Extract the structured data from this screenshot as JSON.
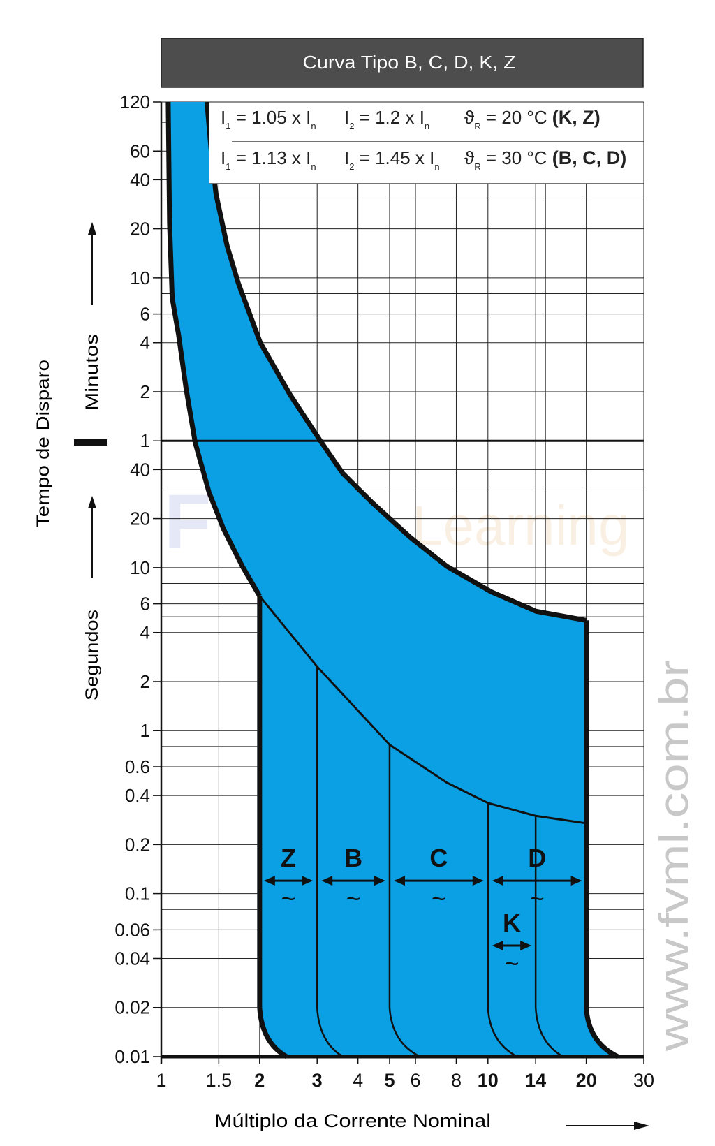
{
  "colors": {
    "fill": "#0b9fe3",
    "header_bg": "#4d4d4d",
    "line": "#111111",
    "watermark": "#c8c8c8"
  },
  "header": {
    "title": "Curva Tipo B, C, D, K, Z"
  },
  "conditions": [
    {
      "i1": "1.05",
      "i2": "1.2",
      "temp": "20 °C",
      "types": "(K, Z)"
    },
    {
      "i1": "1.13",
      "i2": "1.45",
      "temp": "30 °C",
      "types": "(B, C, D)"
    }
  ],
  "condition_labels": {
    "i": "I",
    "sub1": "1",
    "sub2": "2",
    "subn": "n",
    "times": "x",
    "eq": "=",
    "theta": "ϑ",
    "subR": "R"
  },
  "watermarks": {
    "site": "www.fvml.com.br",
    "logo": "FVML Learning"
  },
  "chart_data": {
    "type": "area",
    "title": "Curva Tipo B, C, D, K, Z",
    "xlabel": "Múltiplo da Corrente Nominal",
    "ylabel": "Tempo de Disparo",
    "ylabel_minutes": "Minutos",
    "ylabel_seconds": "Segundos",
    "xscale": "log",
    "yscale": "log",
    "xlim": [
      1,
      30
    ],
    "ylim_seconds": [
      0.01,
      7200
    ],
    "x_ticks": [
      {
        "v": 1,
        "label": "1",
        "bold": false
      },
      {
        "v": 1.5,
        "label": "1.5",
        "bold": false
      },
      {
        "v": 2,
        "label": "2",
        "bold": true
      },
      {
        "v": 3,
        "label": "3",
        "bold": true
      },
      {
        "v": 4,
        "label": "4",
        "bold": false
      },
      {
        "v": 5,
        "label": "5",
        "bold": true
      },
      {
        "v": 6,
        "label": "6",
        "bold": false
      },
      {
        "v": 8,
        "label": "8",
        "bold": false
      },
      {
        "v": 10,
        "label": "10",
        "bold": true
      },
      {
        "v": 14,
        "label": "14",
        "bold": true
      },
      {
        "v": 20,
        "label": "20",
        "bold": true
      },
      {
        "v": 30,
        "label": "30",
        "bold": false
      }
    ],
    "y_ticks": [
      {
        "s": 7200,
        "label": "120"
      },
      {
        "s": 3600,
        "label": "60"
      },
      {
        "s": 2400,
        "label": "40"
      },
      {
        "s": 1200,
        "label": "20"
      },
      {
        "s": 600,
        "label": "10"
      },
      {
        "s": 360,
        "label": "6"
      },
      {
        "s": 240,
        "label": "4"
      },
      {
        "s": 120,
        "label": "2"
      },
      {
        "s": 60,
        "label": "1"
      },
      {
        "s": 40,
        "label": "40"
      },
      {
        "s": 20,
        "label": "20"
      },
      {
        "s": 10,
        "label": "10"
      },
      {
        "s": 6,
        "label": "6"
      },
      {
        "s": 4,
        "label": "4"
      },
      {
        "s": 2,
        "label": "2"
      },
      {
        "s": 1,
        "label": "1"
      },
      {
        "s": 0.6,
        "label": "0.6"
      },
      {
        "s": 0.4,
        "label": "0.4"
      },
      {
        "s": 0.2,
        "label": "0.2"
      },
      {
        "s": 0.1,
        "label": "0.1"
      },
      {
        "s": 0.06,
        "label": "0.06"
      },
      {
        "s": 0.04,
        "label": "0.04"
      },
      {
        "s": 0.02,
        "label": "0.02"
      },
      {
        "s": 0.01,
        "label": "0.01"
      }
    ],
    "y_minor_grid_seconds": [
      5400,
      1800,
      480,
      30,
      8,
      5,
      0.8,
      0.08
    ],
    "x_grid": [
      1.5,
      2,
      3,
      4,
      5,
      6,
      8,
      10,
      14,
      15,
      20,
      30
    ],
    "series": [
      {
        "name": "thermal-lower-limit",
        "points": [
          [
            1.05,
            7200
          ],
          [
            1.06,
            1295
          ],
          [
            1.08,
            450
          ],
          [
            1.13,
            267
          ],
          [
            1.19,
            127
          ],
          [
            1.27,
            58.5
          ],
          [
            1.4,
            29
          ],
          [
            1.55,
            17.3
          ],
          [
            1.77,
            10.2
          ],
          [
            2.0,
            6.7
          ]
        ]
      },
      {
        "name": "thermal-upper-limit",
        "points": [
          [
            1.38,
            7200
          ],
          [
            1.42,
            3700
          ],
          [
            1.47,
            1969
          ],
          [
            1.59,
            944
          ],
          [
            1.72,
            559
          ],
          [
            2.01,
            240
          ],
          [
            2.48,
            115
          ],
          [
            3.07,
            60
          ],
          [
            3.59,
            38
          ],
          [
            4.43,
            25
          ],
          [
            5.75,
            15.5
          ],
          [
            7.48,
            10.2
          ],
          [
            10.25,
            7.1
          ],
          [
            14.05,
            5.4
          ],
          [
            20,
            4.75
          ]
        ]
      },
      {
        "name": "magnetic-upper-thermal",
        "points": [
          [
            2.0,
            6.7
          ],
          [
            3.0,
            2.47
          ],
          [
            5.0,
            0.82
          ],
          [
            7.48,
            0.48
          ],
          [
            10.0,
            0.36
          ],
          [
            14.0,
            0.3
          ],
          [
            20,
            0.27
          ]
        ]
      }
    ],
    "magnetic_limits": [
      {
        "x": 2,
        "from": 6.7,
        "end_x": 2.42,
        "thick": true
      },
      {
        "x": 3,
        "from": 2.47,
        "end_x": 3.6,
        "thick": false
      },
      {
        "x": 5,
        "from": 0.82,
        "end_x": 6.2,
        "thick": false
      },
      {
        "x": 10,
        "from": 0.36,
        "end_x": 12.3,
        "thick": false
      },
      {
        "x": 14,
        "from": 0.3,
        "end_x": 17,
        "thick": false
      },
      {
        "x": 20,
        "from": 4.75,
        "end_x": 25,
        "thick": true
      }
    ],
    "ranges": [
      {
        "label": "Z",
        "from": 2,
        "to": 3,
        "t": 0.12,
        "symbol": "~"
      },
      {
        "label": "B",
        "from": 3,
        "to": 5,
        "t": 0.12,
        "symbol": "~"
      },
      {
        "label": "C",
        "from": 5,
        "to": 10,
        "t": 0.12,
        "symbol": "~"
      },
      {
        "label": "D",
        "from": 10,
        "to": 20,
        "t": 0.12,
        "symbol": "~"
      },
      {
        "label": "K",
        "from": 10,
        "to": 14,
        "t": 0.048,
        "symbol": "~"
      }
    ]
  }
}
